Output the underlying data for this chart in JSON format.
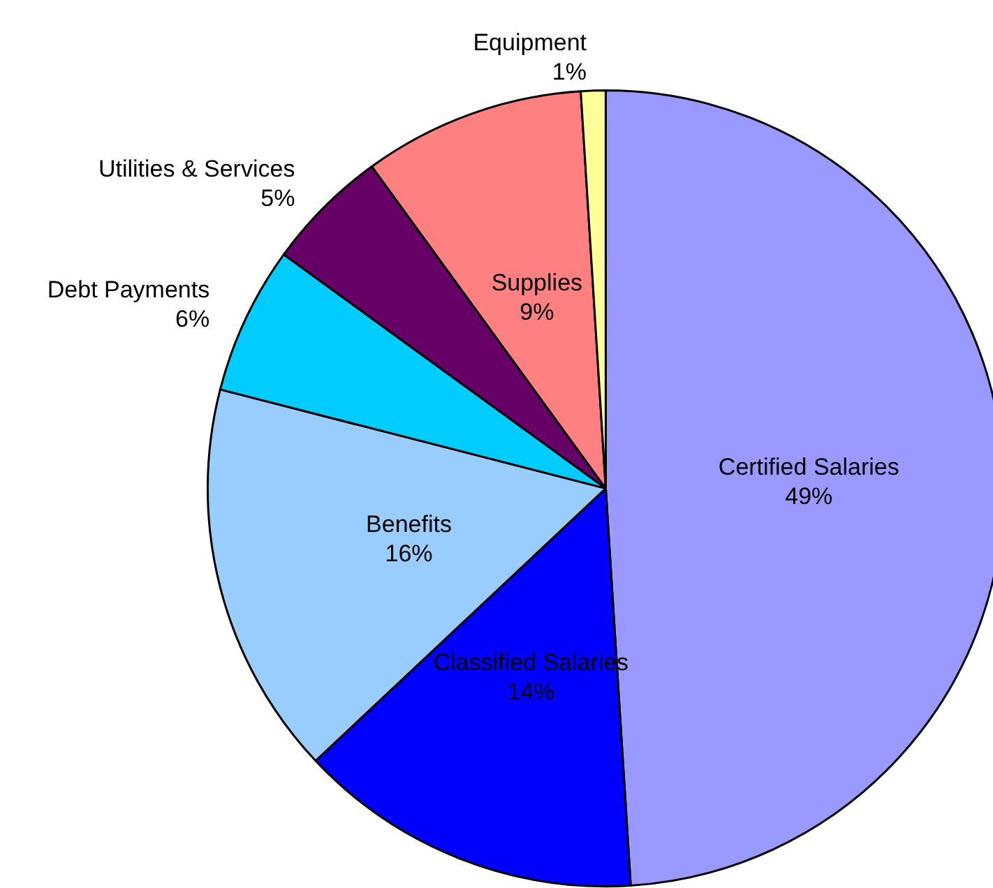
{
  "chart_data": {
    "type": "pie",
    "categories": [
      "Certified Salaries",
      "Classified Salaries",
      "Benefits",
      "Debt Payments",
      "Utilities & Services",
      "Supplies",
      "Equipment"
    ],
    "values": [
      49,
      14,
      16,
      6,
      5,
      9,
      1
    ],
    "colors": [
      "#9999ff",
      "#0000ff",
      "#99ccff",
      "#00ccff",
      "#660066",
      "#ff8080",
      "#ffff99"
    ],
    "value_labels": [
      "49%",
      "14%",
      "16%",
      "6%",
      "5%",
      "9%",
      "1%"
    ],
    "legend": false
  }
}
